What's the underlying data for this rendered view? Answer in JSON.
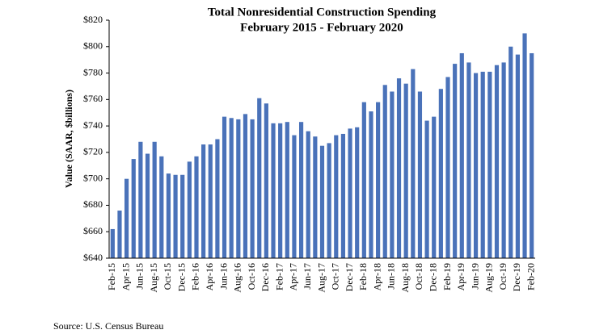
{
  "chart_data": {
    "type": "bar",
    "title": "Total Nonresidential Construction Spending",
    "subtitle": "February 2015 - February 2020",
    "y_label": "Value (SAAR, $billions)",
    "source": "Source:  U.S. Census Bureau",
    "categories": [
      "Feb-15",
      null,
      "Apr-15",
      null,
      "Jun-15",
      null,
      "Aug-15",
      null,
      "Oct-15",
      null,
      "Dec-15",
      null,
      "Feb-16",
      null,
      "Apr-16",
      null,
      "Jun-16",
      null,
      "Aug-16",
      null,
      "Oct-16",
      null,
      "Dec-16",
      null,
      "Feb-17",
      null,
      "Apr-17",
      null,
      "Jun-17",
      null,
      "Aug-17",
      null,
      "Oct-17",
      null,
      "Dec-17",
      null,
      "Feb-18",
      null,
      "Apr-18",
      null,
      "Jun-18",
      null,
      "Aug-18",
      null,
      "Oct-18",
      null,
      "Dec-18",
      null,
      "Feb-19",
      null,
      "Apr-19",
      null,
      "Jun-19",
      null,
      "Aug-19",
      null,
      "Oct-19",
      null,
      "Dec-19",
      null,
      "Feb-20"
    ],
    "values": [
      662,
      676,
      700,
      715,
      728,
      719,
      728,
      717,
      704,
      703,
      703,
      713,
      717,
      726,
      726,
      730,
      747,
      746,
      745,
      749,
      745,
      761,
      757,
      742,
      742,
      743,
      733,
      743,
      736,
      732,
      725,
      727,
      733,
      734,
      738,
      739,
      758,
      751,
      758,
      771,
      766,
      776,
      772,
      783,
      766,
      744,
      747,
      768,
      777,
      787,
      795,
      788,
      780,
      781,
      781,
      786,
      788,
      800,
      794,
      810,
      795
    ],
    "color": "#4a72b9",
    "ylim": [
      640,
      820
    ],
    "yticks": [
      {
        "value": 640,
        "label": "$640"
      },
      {
        "value": 660,
        "label": "$660"
      },
      {
        "value": 680,
        "label": "$680"
      },
      {
        "value": 700,
        "label": "$700"
      },
      {
        "value": 720,
        "label": "$720"
      },
      {
        "value": 740,
        "label": "$740"
      },
      {
        "value": 760,
        "label": "$760"
      },
      {
        "value": 780,
        "label": "$780"
      },
      {
        "value": 800,
        "label": "$800"
      },
      {
        "value": 820,
        "label": "$820"
      }
    ],
    "grid": false
  }
}
